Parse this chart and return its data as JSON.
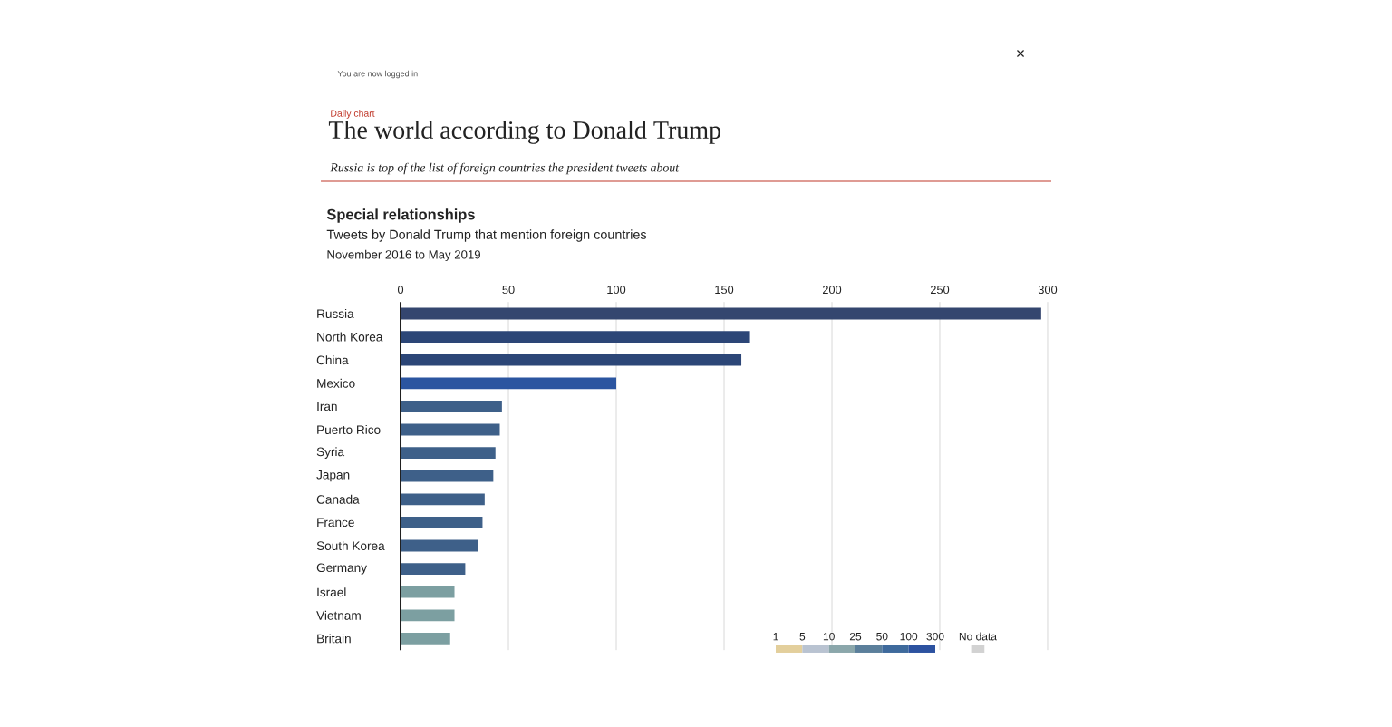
{
  "chart_data": [
    {
      "type": "bar",
      "orientation": "horizontal",
      "title": "The world according to Donald Trump",
      "subtitle": "Russia is top of the list of foreign countries the president tweets about",
      "annotations": [
        "You are now logged in",
        "Daily chart",
        "Special relationships",
        "Tweets by Donald Trump that mention foreign countries",
        "November 2016 to May 2019",
        "×"
      ],
      "categories": [
        "Russia",
        "North Korea",
        "China",
        "Mexico",
        "Iran",
        "Puerto Rico",
        "Syria",
        "Japan",
        "Canada",
        "France",
        "South Korea",
        "Germany",
        "Israel",
        "Vietnam",
        "Britain"
      ],
      "values": [
        297,
        162,
        158,
        100,
        47,
        46,
        44,
        43,
        39,
        38,
        36,
        30,
        25,
        25,
        23
      ],
      "colors": [
        "#34466f",
        "#2c4677",
        "#2c4677",
        "#2b55a0",
        "#3e6089",
        "#3e6089",
        "#3e6089",
        "#3e6089",
        "#3e6089",
        "#3e6089",
        "#3e6089",
        "#3e6089",
        "#7c9fa1",
        "#7c9fa1",
        "#7c9fa1"
      ],
      "xlim": [
        0,
        300
      ],
      "xticks": [
        0,
        50,
        100,
        150,
        200,
        250,
        300
      ],
      "grid": "x"
    },
    {
      "type": "other",
      "categories": [
        "1",
        "5",
        "10",
        "25",
        "50",
        "100",
        "300",
        "No data"
      ],
      "colors": [
        "#e3cf9c",
        "#b9c3d1",
        "#8ba7ab",
        "#5b7f9b",
        "#3e6a9c",
        "#2c52a0",
        "#d2d2d2"
      ]
    }
  ]
}
